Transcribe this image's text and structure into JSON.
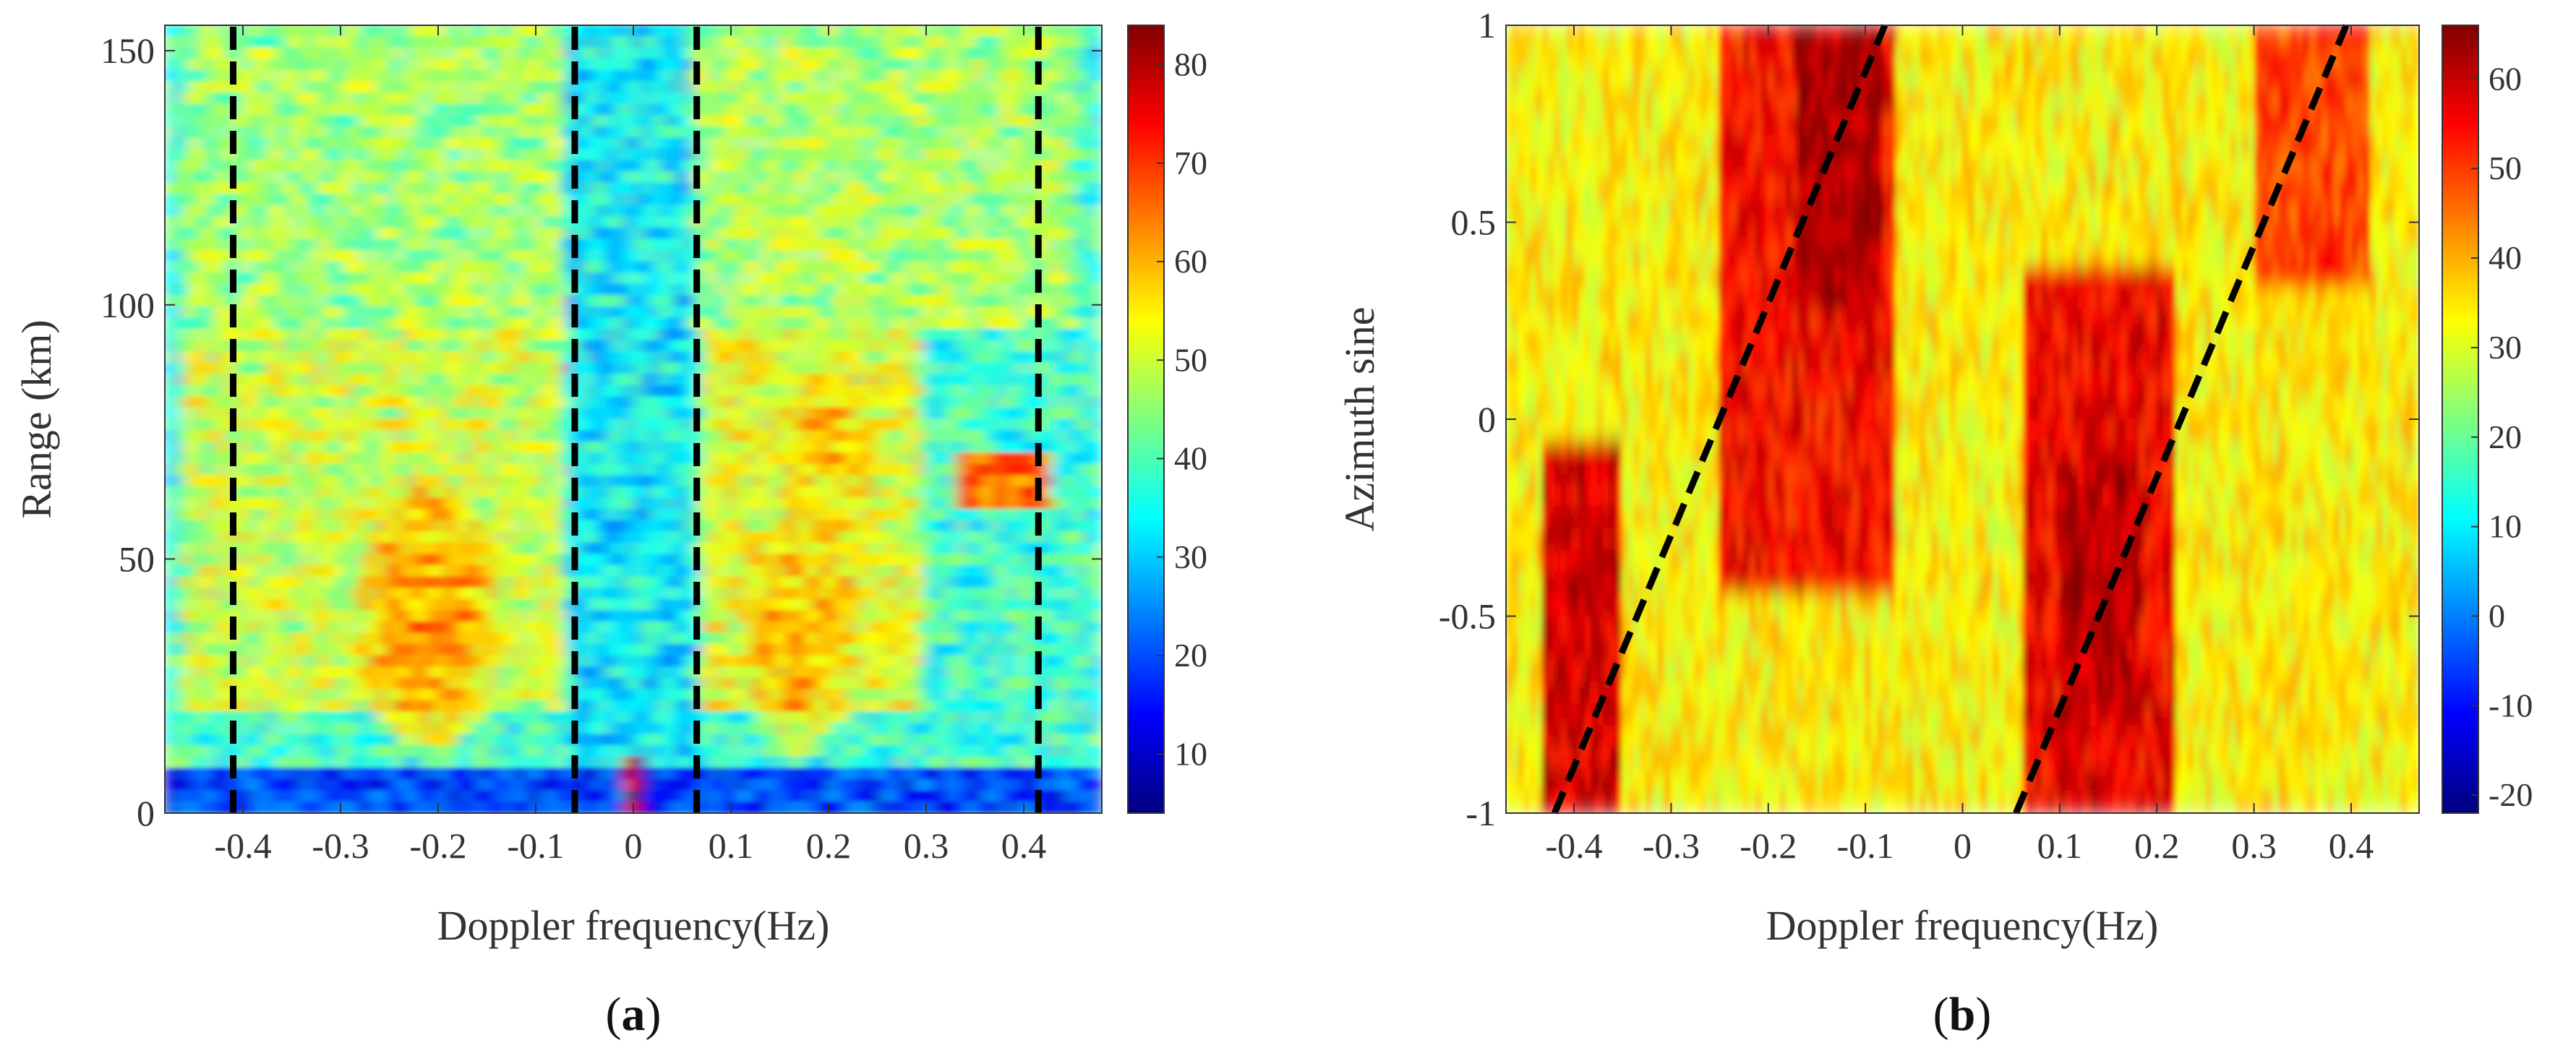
{
  "chart_data": [
    {
      "type": "heatmap",
      "panel_label": "a",
      "caption_open": "(",
      "caption_close": ")",
      "xlabel": "Doppler frequency(Hz)",
      "ylabel": "Range (km)",
      "xlim": [
        -0.48,
        0.48
      ],
      "ylim": [
        0,
        155
      ],
      "xticks": [
        -0.4,
        -0.3,
        -0.2,
        -0.1,
        0,
        0.1,
        0.2,
        0.3,
        0.4
      ],
      "xtick_labels": [
        "-0.4",
        "-0.3",
        "-0.2",
        "-0.1",
        "0",
        "0.1",
        "0.2",
        "0.3",
        "0.4"
      ],
      "yticks": [
        0,
        50,
        100,
        150
      ],
      "ytick_labels": [
        "0",
        "50",
        "100",
        "150"
      ],
      "colorbar": {
        "clim": [
          4,
          84
        ],
        "ticks": [
          10,
          20,
          30,
          40,
          50,
          60,
          70,
          80
        ],
        "tick_labels": [
          "10",
          "20",
          "30",
          "40",
          "50",
          "60",
          "70",
          "80"
        ]
      },
      "dashed_lines": [
        {
          "x": [
            -0.41,
            -0.41
          ],
          "y": [
            0,
            155
          ]
        },
        {
          "x": [
            -0.06,
            -0.06
          ],
          "y": [
            0,
            155
          ]
        },
        {
          "x": [
            0.065,
            0.065
          ],
          "y": [
            0,
            155
          ]
        },
        {
          "x": [
            0.415,
            0.415
          ],
          "y": [
            0,
            155
          ]
        }
      ],
      "background_value": 38,
      "features": [
        {
          "kind": "band",
          "x0": -0.46,
          "x1": -0.05,
          "y0": 95,
          "y1": 155,
          "value": 46
        },
        {
          "kind": "band",
          "x0": 0.06,
          "x1": 0.45,
          "y0": 95,
          "y1": 155,
          "value": 47
        },
        {
          "kind": "band",
          "x0": -0.46,
          "x1": -0.07,
          "y0": 20,
          "y1": 95,
          "value": 50
        },
        {
          "kind": "band",
          "x0": 0.07,
          "x1": 0.3,
          "y0": 20,
          "y1": 95,
          "value": 52
        },
        {
          "kind": "blob",
          "x": -0.21,
          "y": 38,
          "rx": 0.07,
          "ry": 28,
          "value": 62
        },
        {
          "kind": "blob",
          "x": 0.17,
          "y": 35,
          "rx": 0.06,
          "ry": 24,
          "value": 60
        },
        {
          "kind": "blob",
          "x": 0.2,
          "y": 72,
          "rx": 0.05,
          "ry": 15,
          "value": 58
        },
        {
          "kind": "band",
          "x0": 0.33,
          "x1": 0.43,
          "y0": 59,
          "y1": 70,
          "value": 66
        },
        {
          "kind": "band",
          "x0": -0.48,
          "x1": 0.48,
          "y0": 0,
          "y1": 9,
          "value": 18
        },
        {
          "kind": "band",
          "x0": -0.07,
          "x1": 0.06,
          "y0": 9,
          "y1": 155,
          "value": 33
        },
        {
          "kind": "band",
          "x0": -0.008,
          "x1": 0.008,
          "y0": 0,
          "y1": 10,
          "value": 82
        }
      ]
    },
    {
      "type": "heatmap",
      "panel_label": "b",
      "caption_open": "(",
      "caption_close": ")",
      "xlabel": "Doppler frequency(Hz)",
      "ylabel": "Azimuth sine",
      "xlim": [
        -0.47,
        0.47
      ],
      "ylim": [
        -1,
        1
      ],
      "xticks": [
        -0.4,
        -0.3,
        -0.2,
        -0.1,
        0,
        0.1,
        0.2,
        0.3,
        0.4
      ],
      "xtick_labels": [
        "-0.4",
        "-0.3",
        "-0.2",
        "-0.1",
        "0",
        "0.1",
        "0.2",
        "0.3",
        "0.4"
      ],
      "yticks": [
        -1,
        -0.5,
        0,
        0.5,
        1
      ],
      "ytick_labels": [
        "-1",
        "-0.5",
        "0",
        "0.5",
        "1"
      ],
      "colorbar": {
        "clim": [
          -22,
          66
        ],
        "ticks": [
          -20,
          -10,
          0,
          10,
          20,
          30,
          40,
          50,
          60
        ],
        "tick_labels": [
          "-20",
          "-10",
          "0",
          "10",
          "20",
          "30",
          "40",
          "50",
          "60"
        ]
      },
      "dashed_lines": [
        {
          "x": [
            -0.42,
            -0.08
          ],
          "y": [
            -1,
            1
          ]
        },
        {
          "x": [
            0.055,
            0.395
          ],
          "y": [
            -1,
            1
          ]
        }
      ],
      "background_value": 34,
      "features": [
        {
          "kind": "band",
          "x0": -0.43,
          "x1": -0.35,
          "y0": -1,
          "y1": -0.05,
          "value": 58
        },
        {
          "kind": "band",
          "x0": -0.25,
          "x1": -0.07,
          "y0": -0.45,
          "y1": 1,
          "value": 55
        },
        {
          "kind": "band",
          "x0": -0.17,
          "x1": -0.08,
          "y0": 0.3,
          "y1": 1,
          "value": 63
        },
        {
          "kind": "band",
          "x0": 0.06,
          "x1": 0.22,
          "y0": -1,
          "y1": 0.4,
          "value": 56
        },
        {
          "kind": "band",
          "x0": 0.1,
          "x1": 0.18,
          "y0": -0.8,
          "y1": -0.1,
          "value": 61
        },
        {
          "kind": "band",
          "x0": 0.3,
          "x1": 0.42,
          "y0": 0.35,
          "y1": 1,
          "value": 50
        }
      ]
    }
  ]
}
